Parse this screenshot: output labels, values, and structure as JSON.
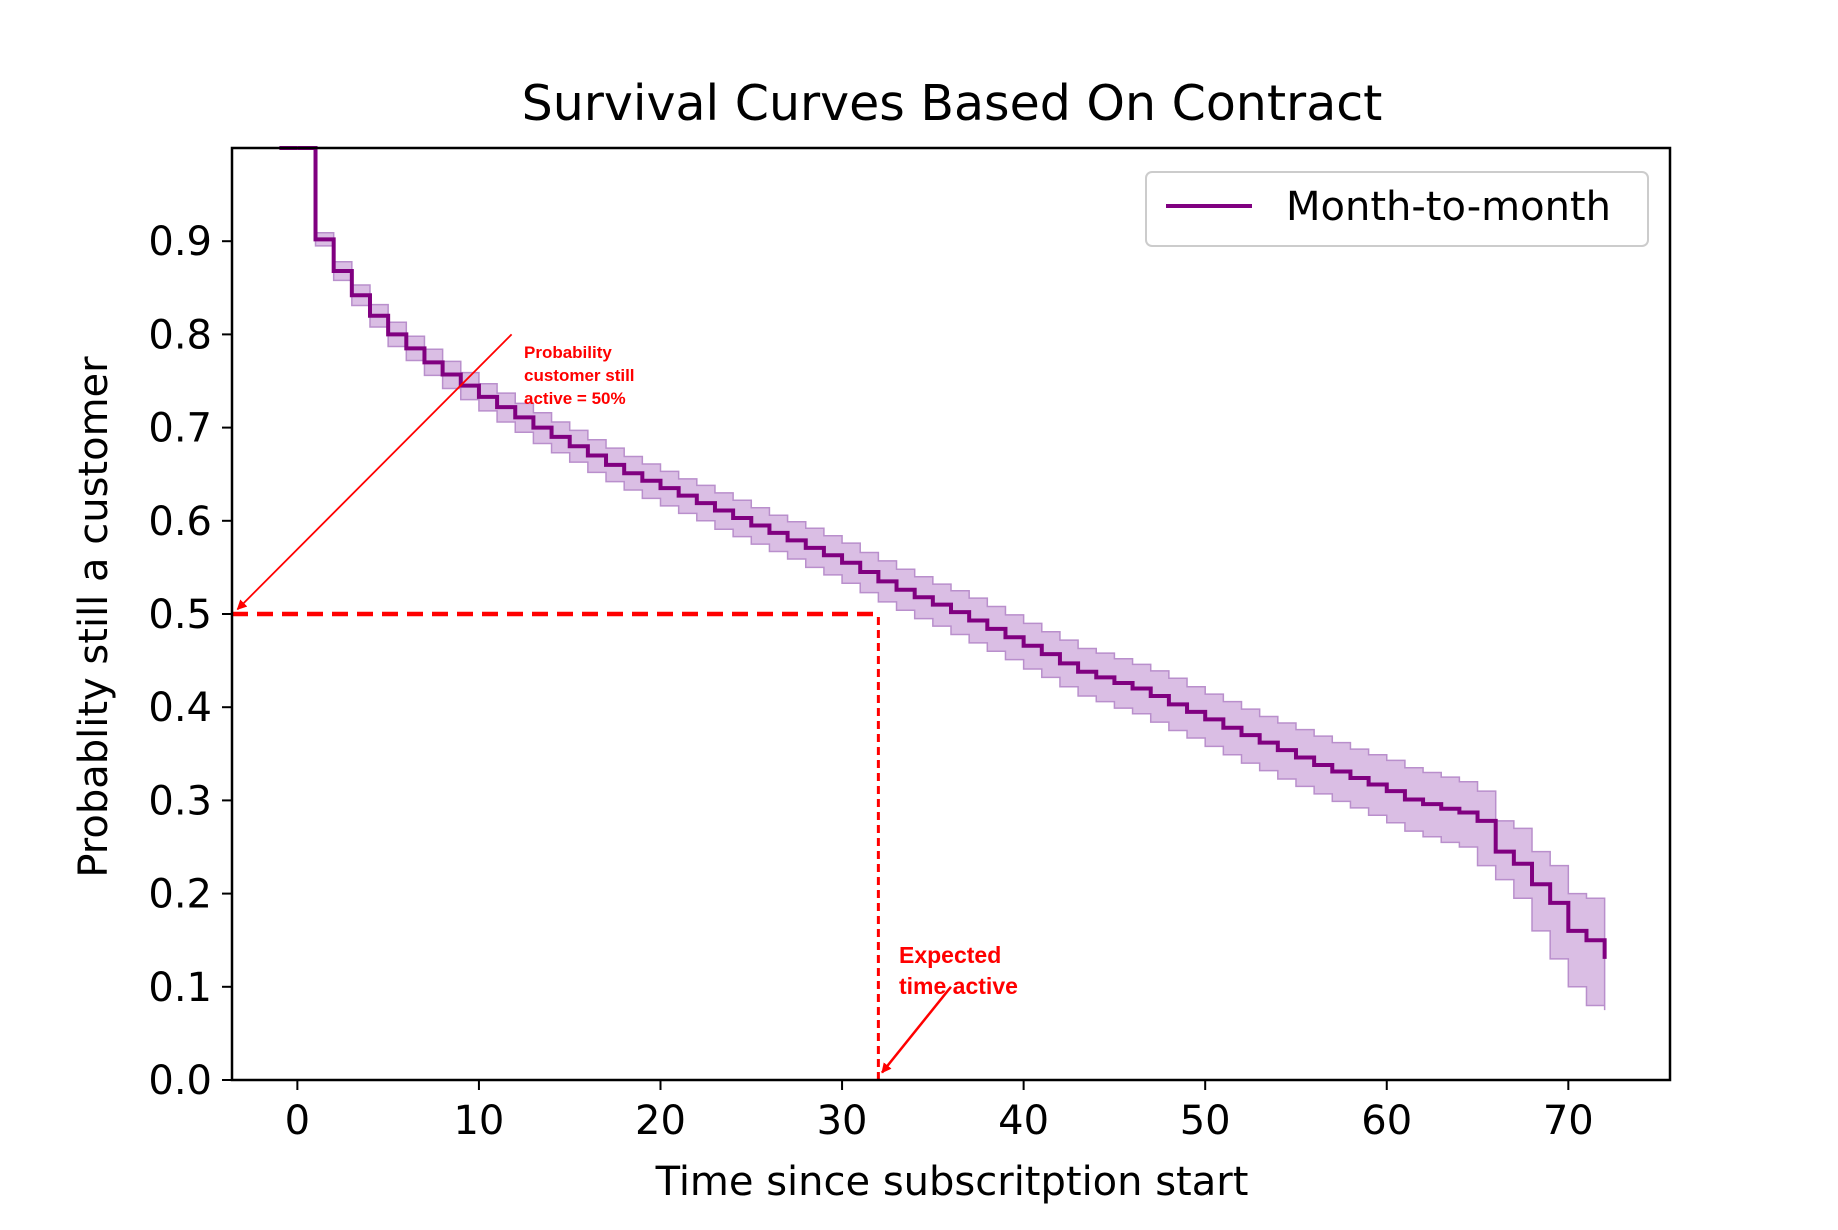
{
  "chart_data": {
    "type": "line",
    "title": "Survival Curves Based On Contract",
    "xlabel": "Time since subscritption start",
    "ylabel": "Probablity still a customer",
    "xlim": [
      -3.6,
      75.6
    ],
    "ylim": [
      0,
      1.0
    ],
    "xticks": [
      0,
      10,
      20,
      30,
      40,
      50,
      60,
      70
    ],
    "yticks": [
      0.0,
      0.1,
      0.2,
      0.3,
      0.4,
      0.5,
      0.6,
      0.7,
      0.8,
      0.9
    ],
    "grid": false,
    "legend_position": "top-right",
    "series": [
      {
        "name": "Month-to-month",
        "color": "#800080",
        "ci_color": "#cda8db",
        "x": [
          0,
          1,
          2,
          3,
          4,
          5,
          6,
          7,
          8,
          9,
          10,
          11,
          12,
          13,
          14,
          15,
          16,
          17,
          18,
          19,
          20,
          21,
          22,
          23,
          24,
          25,
          26,
          27,
          28,
          29,
          30,
          31,
          32,
          33,
          34,
          35,
          36,
          37,
          38,
          39,
          40,
          41,
          42,
          43,
          44,
          45,
          46,
          47,
          48,
          49,
          50,
          51,
          52,
          53,
          54,
          55,
          56,
          57,
          58,
          59,
          60,
          61,
          62,
          63,
          64,
          65,
          66,
          67,
          68,
          69,
          70,
          71,
          72
        ],
        "y": [
          1.0,
          0.902,
          0.868,
          0.842,
          0.82,
          0.8,
          0.785,
          0.77,
          0.757,
          0.745,
          0.733,
          0.722,
          0.711,
          0.7,
          0.69,
          0.68,
          0.67,
          0.66,
          0.651,
          0.643,
          0.635,
          0.627,
          0.619,
          0.611,
          0.603,
          0.595,
          0.587,
          0.579,
          0.571,
          0.563,
          0.555,
          0.545,
          0.535,
          0.526,
          0.518,
          0.51,
          0.502,
          0.493,
          0.484,
          0.475,
          0.466,
          0.457,
          0.447,
          0.438,
          0.432,
          0.426,
          0.42,
          0.412,
          0.403,
          0.395,
          0.387,
          0.378,
          0.37,
          0.362,
          0.354,
          0.346,
          0.338,
          0.331,
          0.324,
          0.317,
          0.31,
          0.301,
          0.296,
          0.291,
          0.287,
          0.278,
          0.245,
          0.232,
          0.21,
          0.19,
          0.16,
          0.15,
          0.13
        ],
        "ci_lower": [
          1.0,
          0.895,
          0.858,
          0.831,
          0.808,
          0.787,
          0.772,
          0.756,
          0.742,
          0.73,
          0.718,
          0.706,
          0.695,
          0.683,
          0.673,
          0.663,
          0.652,
          0.642,
          0.633,
          0.624,
          0.616,
          0.608,
          0.6,
          0.591,
          0.583,
          0.575,
          0.567,
          0.559,
          0.55,
          0.542,
          0.533,
          0.523,
          0.513,
          0.504,
          0.495,
          0.487,
          0.478,
          0.469,
          0.46,
          0.451,
          0.441,
          0.432,
          0.422,
          0.412,
          0.406,
          0.399,
          0.393,
          0.384,
          0.375,
          0.367,
          0.358,
          0.349,
          0.34,
          0.332,
          0.323,
          0.315,
          0.307,
          0.299,
          0.292,
          0.284,
          0.276,
          0.267,
          0.261,
          0.255,
          0.25,
          0.23,
          0.215,
          0.195,
          0.16,
          0.13,
          0.1,
          0.08,
          0.075
        ],
        "ci_upper": [
          1.0,
          0.909,
          0.878,
          0.853,
          0.832,
          0.813,
          0.798,
          0.784,
          0.771,
          0.759,
          0.747,
          0.737,
          0.726,
          0.716,
          0.706,
          0.697,
          0.687,
          0.678,
          0.669,
          0.661,
          0.653,
          0.645,
          0.638,
          0.63,
          0.622,
          0.614,
          0.606,
          0.599,
          0.592,
          0.584,
          0.576,
          0.566,
          0.557,
          0.548,
          0.54,
          0.532,
          0.525,
          0.517,
          0.508,
          0.499,
          0.49,
          0.481,
          0.472,
          0.463,
          0.458,
          0.452,
          0.446,
          0.439,
          0.431,
          0.422,
          0.414,
          0.406,
          0.398,
          0.39,
          0.383,
          0.376,
          0.369,
          0.362,
          0.355,
          0.349,
          0.343,
          0.335,
          0.33,
          0.325,
          0.32,
          0.31,
          0.278,
          0.27,
          0.245,
          0.23,
          0.2,
          0.195,
          0.195
        ]
      }
    ],
    "annotations": [
      {
        "lines": [
          "Probability",
          "customer still",
          "active = 50%"
        ],
        "color": "#ff0000",
        "arrow_to": [
          -3.3,
          0.505
        ],
        "arrow_from": [
          11.8,
          0.8
        ]
      },
      {
        "lines": [
          "Expected",
          "time active"
        ],
        "color": "#ff0000",
        "arrow_to": [
          32.2,
          0.008
        ],
        "arrow_from": [
          36.0,
          0.1
        ]
      }
    ],
    "reference_lines": [
      {
        "orientation": "horizontal",
        "y": 0.5,
        "x_from": -3.6,
        "x_to": 32.0,
        "color": "#ff0000",
        "style": "dashed"
      },
      {
        "orientation": "vertical",
        "x": 32.0,
        "y_from": 0.0,
        "y_to": 0.5,
        "color": "#ff0000",
        "style": "dashed"
      }
    ]
  }
}
